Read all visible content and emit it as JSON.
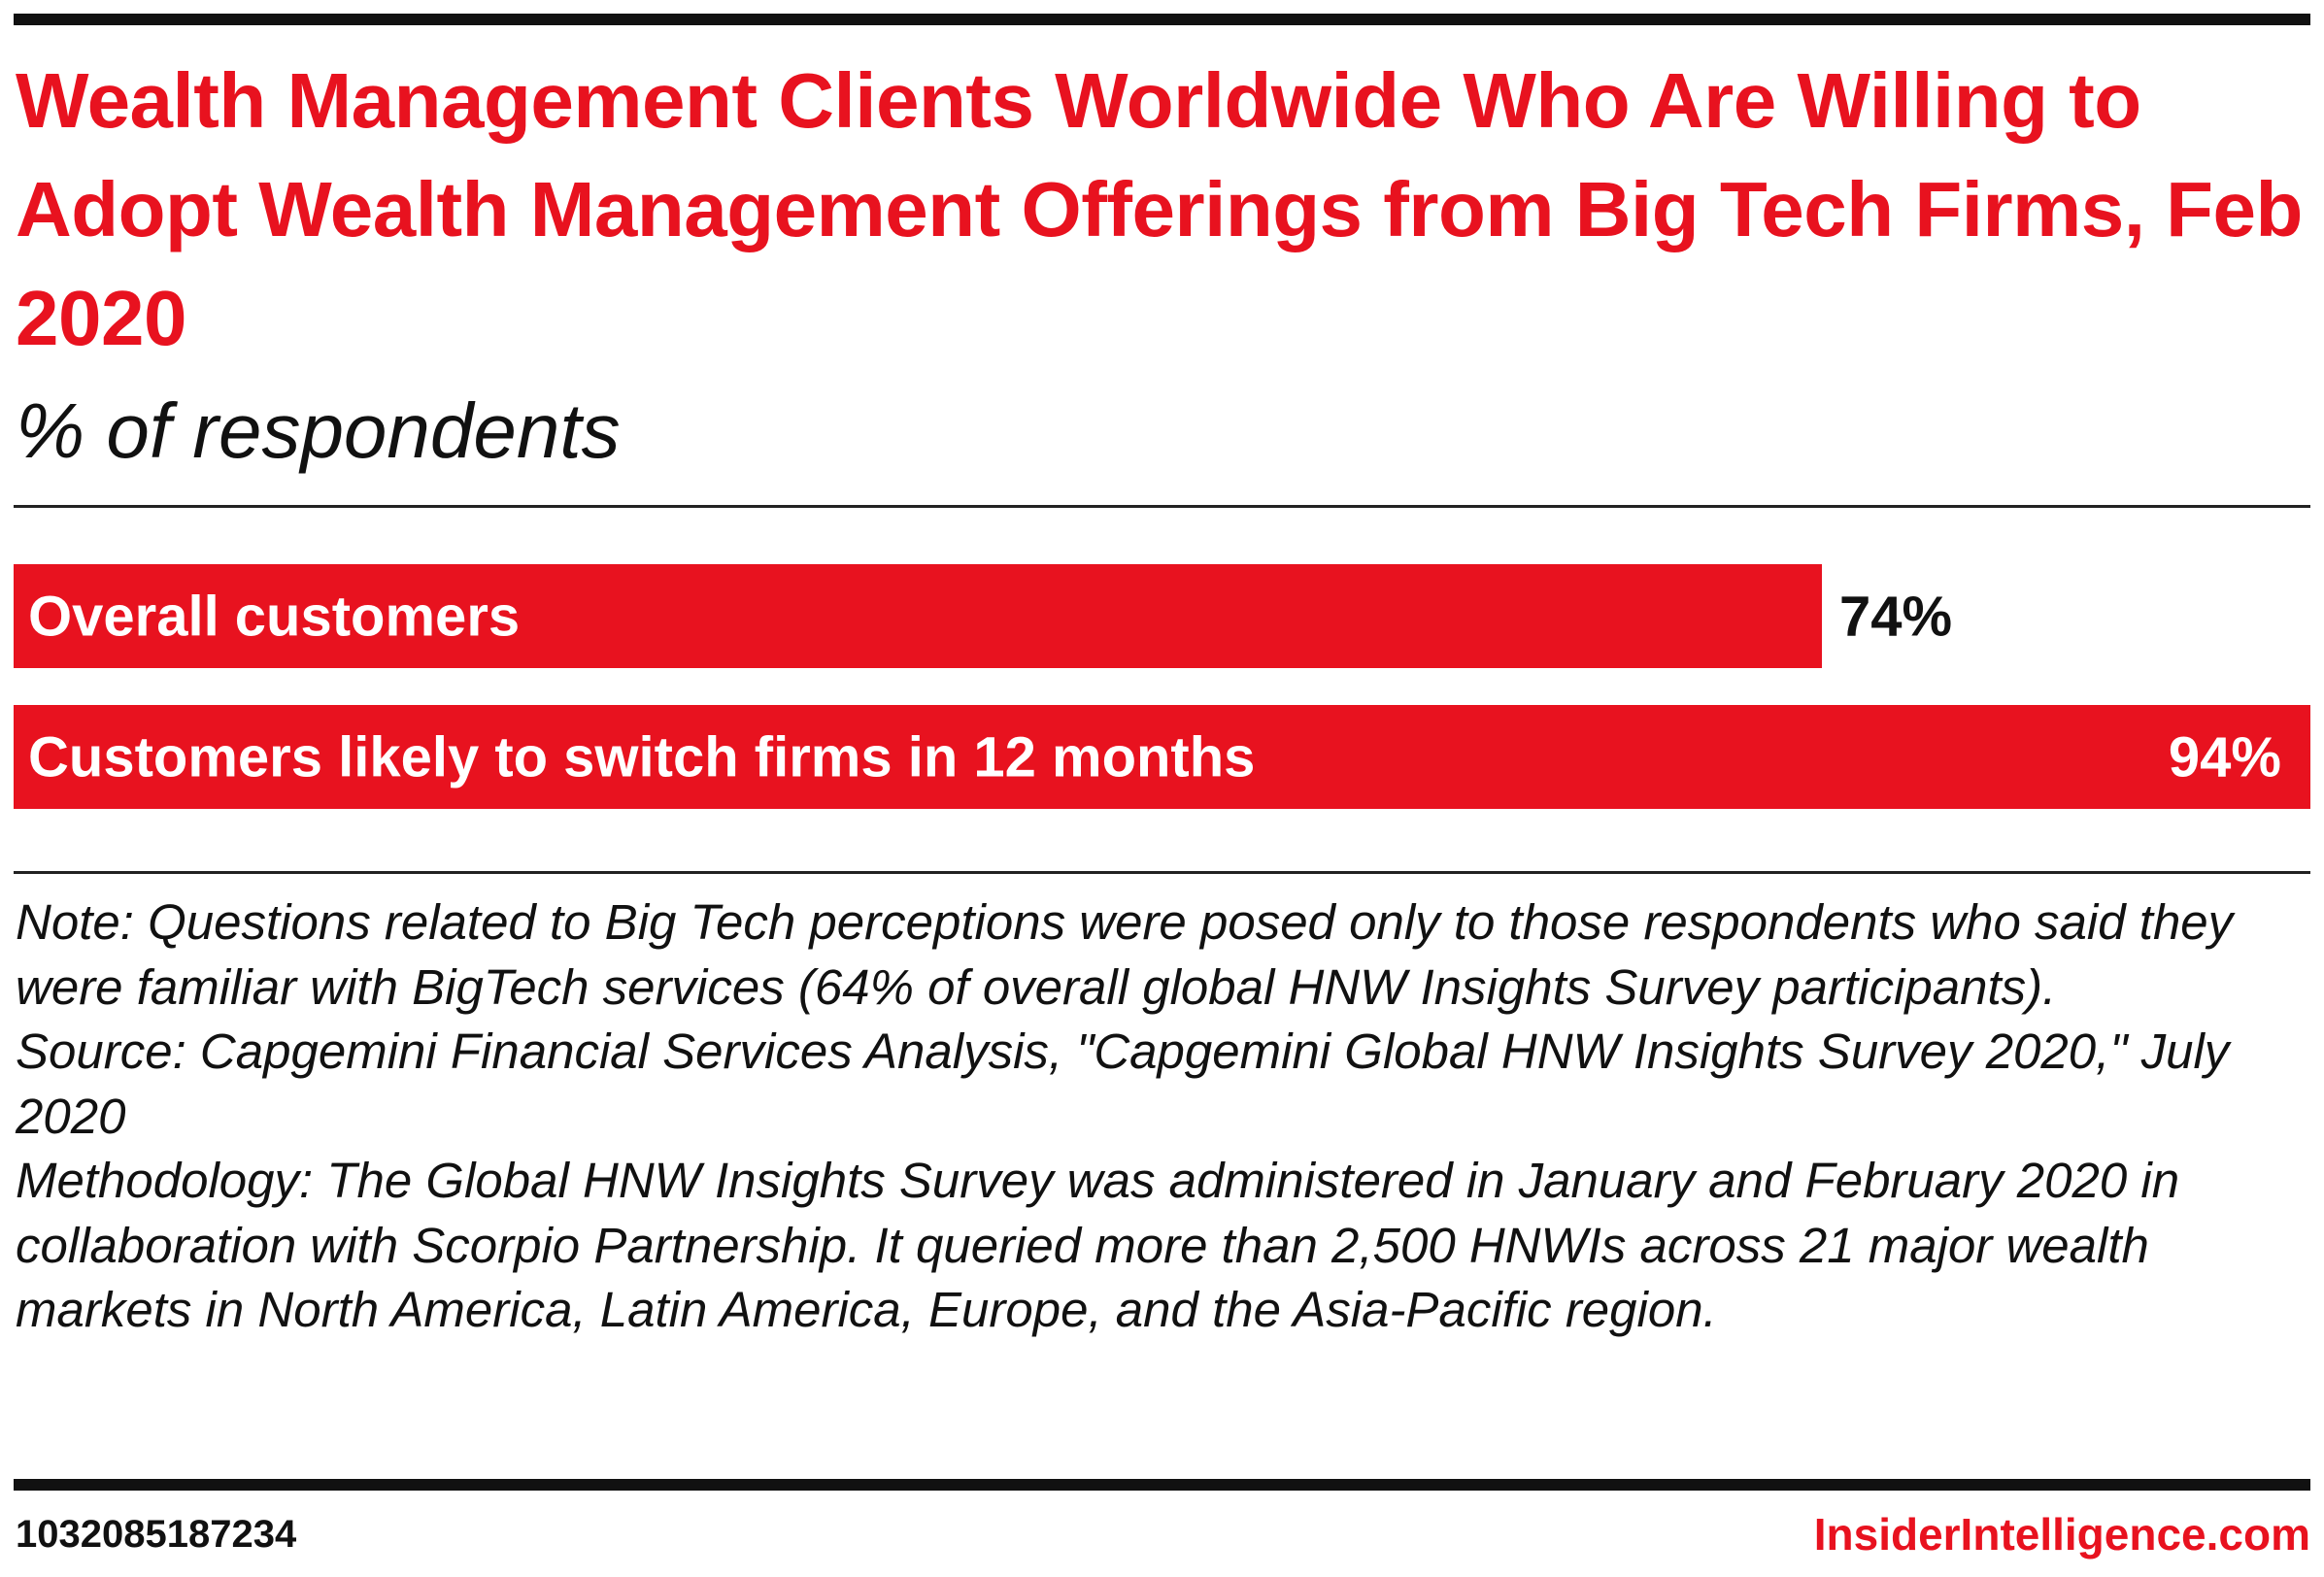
{
  "colors": {
    "accent": "#e8121f",
    "text": "#111111",
    "bar_label": "#ffffff"
  },
  "header": {
    "title": "Wealth Management Clients Worldwide Who Are Willing to Adopt Wealth Management Offerings from Big Tech Firms, Feb 2020",
    "subtitle": "% of respondents"
  },
  "chart_data": {
    "type": "bar",
    "orientation": "horizontal",
    "title": "Wealth Management Clients Worldwide Who Are Willing to Adopt Wealth Management Offerings from Big Tech Firms, Feb 2020",
    "subtitle": "% of respondents",
    "categories": [
      "Overall customers",
      "Customers likely to switch firms in 12 months"
    ],
    "values": [
      74,
      94
    ],
    "value_labels": [
      "74%",
      "94%"
    ],
    "unit": "%",
    "xlim": [
      0,
      94
    ],
    "grid": false,
    "legend": "none"
  },
  "notes": {
    "note": "Note: Questions related to Big Tech perceptions were posed only to those respondents who said they were familiar with BigTech services (64% of overall global HNW Insights Survey participants).",
    "source": "Source: Capgemini Financial Services Analysis, \"Capgemini Global HNW Insights Survey 2020,\" July 2020",
    "methodology": "Methodology: The Global HNW Insights Survey was administered in January and February 2020 in collaboration with Scorpio Partnership. It queried more than 2,500 HNWIs across 21 major wealth markets in North America, Latin America, Europe, and the Asia-Pacific region."
  },
  "footer": {
    "chart_id": "1032085187234",
    "brand": "InsiderIntelligence.com"
  }
}
